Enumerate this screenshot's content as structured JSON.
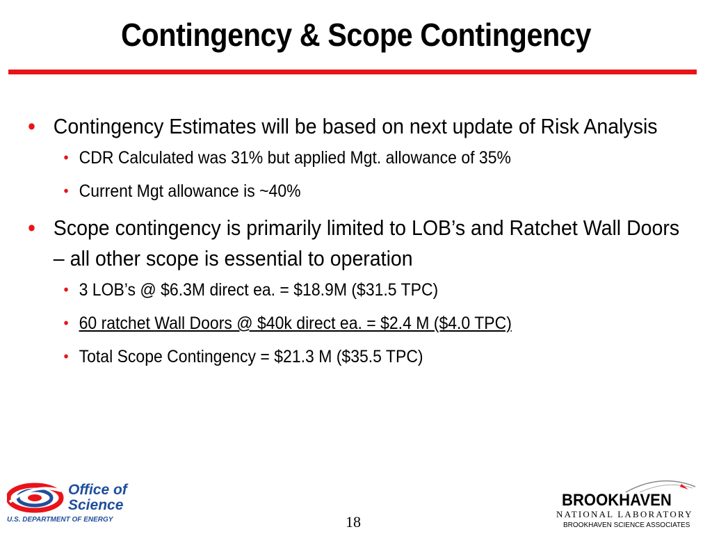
{
  "title": "Contingency & Scope Contingency",
  "bullets": [
    {
      "text": "Contingency Estimates will be based on next update of Risk Analysis",
      "sub": [
        "CDR Calculated was 31% but applied Mgt. allowance of 35%",
        "Current Mgt allowance is ~40%"
      ]
    },
    {
      "text": "Scope contingency is primarily limited to LOB’s and Ratchet Wall Doors – all other scope is essential to operation",
      "sub": [
        "3 LOB’s @ $6.3M direct ea. = $18.9M ($31.5 TPC)",
        "60 ratchet Wall Doors @ $40k direct ea. = $2.4 M ($4.0 TPC)",
        "Total Scope Contingency  = $21.3 M ($35.5 TPC)"
      ]
    }
  ],
  "bullet_glyph": "•",
  "page_number": "18",
  "footer_left": {
    "line1": "Office of",
    "line2": "Science",
    "subtitle": "U.S. DEPARTMENT OF ENERGY"
  },
  "footer_right": {
    "name": "BROOKHAVEN",
    "lab": "NATIONAL LABORATORY",
    "associates": "BROOKHAVEN SCIENCE ASSOCIATES"
  },
  "colors": {
    "accent": "#e8141a",
    "doe_blue": "#1f4e9c",
    "doe_red": "#e8141a"
  }
}
